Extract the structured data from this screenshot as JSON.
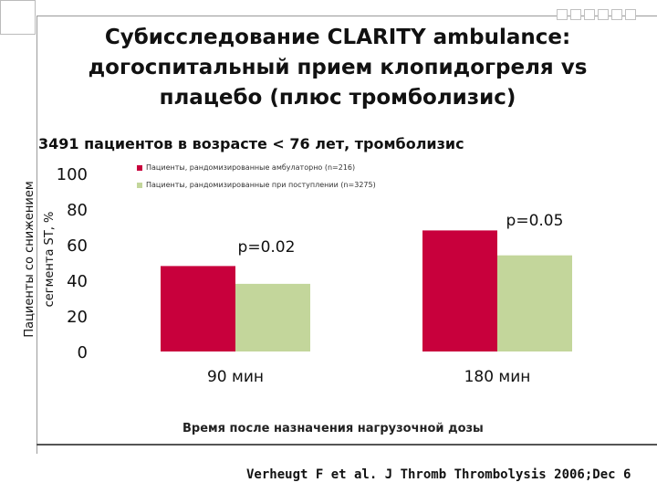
{
  "slide": {
    "title_lines": [
      "Субисследование CLARITY ambulance:",
      "догоспитальный прием клопидогреля vs",
      "плацебо (плюс тромболизис)"
    ],
    "subtitle": "3491 пациентов в возрасте < 76 лет, тромболизис",
    "source": "Verheugt F et al. J Thromb Thrombolysis 2006;Dec 6"
  },
  "chart_data": {
    "type": "bar",
    "title": "",
    "ylabel_lines": [
      "Пациенты со снижением",
      "сегмента ST, %"
    ],
    "xlabel": "Время после назначения нагрузочной дозы",
    "categories": [
      "90 мин",
      "180 мин"
    ],
    "ylim": [
      0,
      100
    ],
    "yticks": [
      0,
      20,
      40,
      60,
      80,
      100
    ],
    "grid": false,
    "legend_position": "top-left",
    "series": [
      {
        "name": "Пациенты, рандомизированные амбулаторно (n=216)",
        "color": "#c8003c",
        "values": [
          48,
          68
        ]
      },
      {
        "name": "Пациенты, рандомизированные при поступлении (n=3275)",
        "color": "#c3d69b",
        "values": [
          38,
          54
        ]
      }
    ],
    "annotations": [
      {
        "category": "90 мин",
        "text": "p=0.02"
      },
      {
        "category": "180 мин",
        "text": "p=0.05"
      }
    ]
  }
}
